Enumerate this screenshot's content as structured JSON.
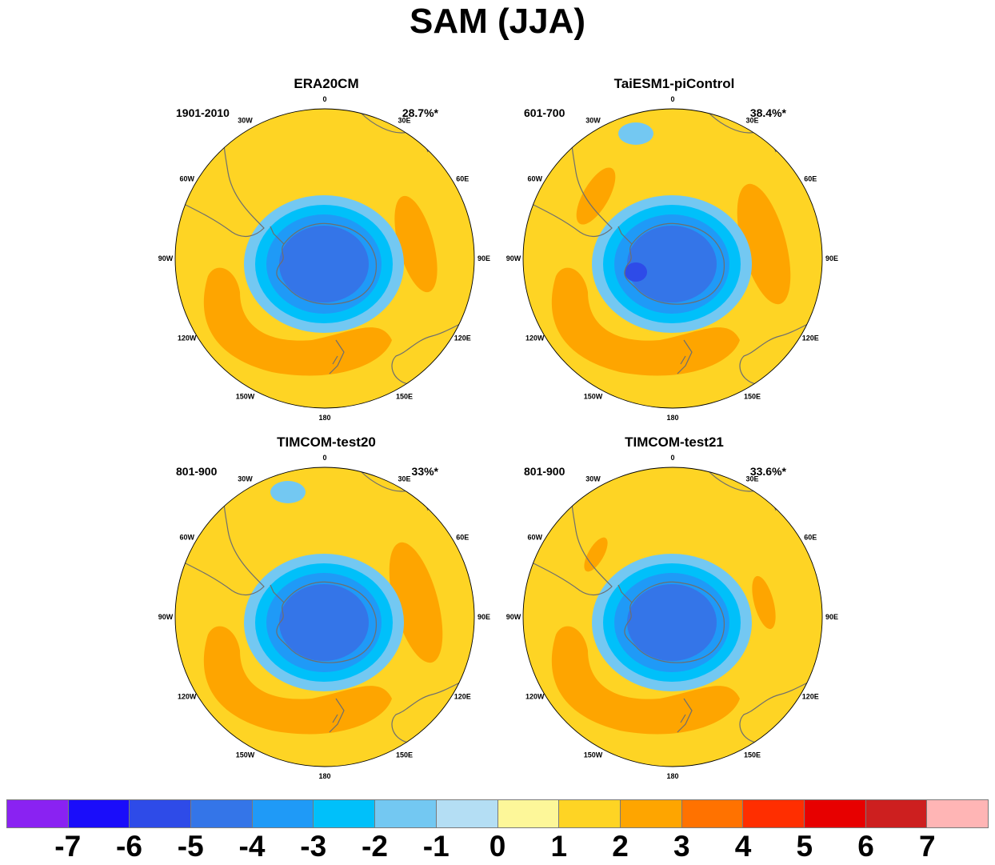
{
  "title": "SAM (JJA)",
  "lon_labels": [
    "0",
    "30E",
    "60E",
    "90E",
    "120E",
    "150E",
    "180",
    "150W",
    "120W",
    "90W",
    "60W",
    "30W"
  ],
  "panels": [
    {
      "name": "ERA20CM",
      "period": "1901-2010",
      "variance": "28.7%*",
      "features": {
        "pos_arc": "strong",
        "pos_e": "medium",
        "pos_w": "none",
        "neg_island": false,
        "center_level": -4
      }
    },
    {
      "name": "TaiESM1-piControl",
      "period": "601-700",
      "variance": "38.4%*",
      "features": {
        "pos_arc": "strong",
        "pos_e": "large",
        "pos_w": "large",
        "neg_island": true,
        "center_level": -5
      }
    },
    {
      "name": "TIMCOM-test20",
      "period": "801-900",
      "variance": "33%*",
      "features": {
        "pos_arc": "strong",
        "pos_e": "large",
        "pos_w": "none",
        "neg_island": true,
        "center_level": -4
      }
    },
    {
      "name": "TIMCOM-test21",
      "period": "801-900",
      "variance": "33.6%*",
      "features": {
        "pos_arc": "strong",
        "pos_e": "small",
        "pos_w": "small",
        "neg_island": false,
        "center_level": -4
      }
    }
  ],
  "colorbar": {
    "labels": [
      "-7",
      "-6",
      "-5",
      "-4",
      "-3",
      "-2",
      "-1",
      "0",
      "1",
      "2",
      "3",
      "4",
      "5",
      "6",
      "7"
    ],
    "colors": [
      "#8a22f2",
      "#1a0dfa",
      "#2e4be8",
      "#3475e8",
      "#1f9af7",
      "#00c0fa",
      "#73c8f2",
      "#b4def4",
      "#fdf799",
      "#fed424",
      "#fea500",
      "#ff7200",
      "#ff2e00",
      "#e70000",
      "#cd1f1f",
      "#ffb5b5"
    ]
  }
}
